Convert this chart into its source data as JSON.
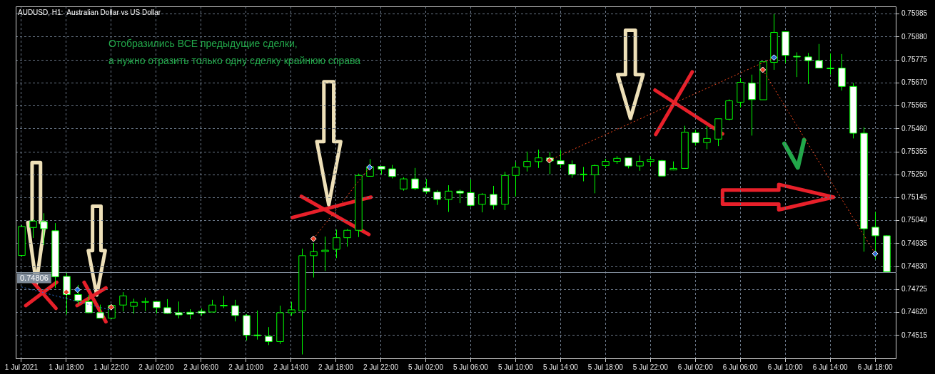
{
  "chart_data": {
    "type": "candlestick",
    "title": "AUDUSD, H1:  Australian Dollar vs US Dollar",
    "categories": [
      "1 Jul 2021",
      null,
      null,
      null,
      "1 Jul 18:00",
      null,
      null,
      null,
      "1 Jul 22:00",
      null,
      null,
      null,
      "2 Jul 02:00",
      null,
      null,
      null,
      "2 Jul 06:00",
      null,
      null,
      null,
      "2 Jul 10:00",
      null,
      null,
      null,
      "2 Jul 14:00",
      null,
      null,
      null,
      "2 Jul 18:00",
      null,
      null,
      null,
      "2 Jul 22:00",
      null,
      null,
      null,
      "5 Jul 02:00",
      null,
      null,
      null,
      "5 Jul 06:00",
      null,
      null,
      null,
      "5 Jul 10:00",
      null,
      null,
      null,
      "5 Jul 14:00",
      null,
      null,
      null,
      "5 Jul 18:00",
      null,
      null,
      null,
      "5 Jul 22:00",
      null,
      null,
      null,
      "6 Jul 02:00",
      null,
      null,
      null,
      "6 Jul 06:00",
      null,
      null,
      null,
      "6 Jul 10:00",
      null,
      null,
      null,
      "6 Jul 14:00",
      null,
      null,
      null,
      "6 Jul 18:00",
      null
    ],
    "ohlc": [
      [
        0.74881,
        0.7502,
        0.74875,
        0.75013
      ],
      [
        0.75009,
        0.75045,
        0.74961,
        0.75038
      ],
      [
        0.75035,
        0.75074,
        0.74929,
        0.75003
      ],
      [
        0.74994,
        0.75029,
        0.74732,
        0.74783
      ],
      [
        0.74785,
        0.74801,
        0.74611,
        0.74702
      ],
      [
        0.74702,
        0.74746,
        0.74656,
        0.74674
      ],
      [
        0.7467,
        0.747,
        0.74617,
        0.74619
      ],
      [
        0.74619,
        0.74656,
        0.74594,
        0.74594
      ],
      [
        0.74594,
        0.74656,
        0.7459,
        0.74653
      ],
      [
        0.74654,
        0.74713,
        0.74624,
        0.74696
      ],
      [
        0.74648,
        0.74683,
        0.74615,
        0.74667
      ],
      [
        0.74668,
        0.74688,
        0.74626,
        0.7467
      ],
      [
        0.7467,
        0.74672,
        0.74616,
        0.74642
      ],
      [
        0.74642,
        0.74681,
        0.74614,
        0.74616
      ],
      [
        0.74619,
        0.7467,
        0.74593,
        0.74609
      ],
      [
        0.74621,
        0.74635,
        0.74589,
        0.74612
      ],
      [
        0.74625,
        0.74638,
        0.74605,
        0.74617
      ],
      [
        0.74622,
        0.74678,
        0.74622,
        0.74654
      ],
      [
        0.74653,
        0.74696,
        0.7464,
        0.74652
      ],
      [
        0.74651,
        0.74678,
        0.74579,
        0.74606
      ],
      [
        0.74606,
        0.74613,
        0.74492,
        0.74516
      ],
      [
        0.74517,
        0.74629,
        0.74496,
        0.74516
      ],
      [
        0.74511,
        0.74553,
        0.74471,
        0.74487
      ],
      [
        0.74487,
        0.74651,
        0.74476,
        0.74619
      ],
      [
        0.74619,
        0.74669,
        0.74605,
        0.74632
      ],
      [
        0.74627,
        0.74912,
        0.74428,
        0.7488
      ],
      [
        0.7488,
        0.74938,
        0.7478,
        0.74898
      ],
      [
        0.74898,
        0.74967,
        0.7481,
        0.74905
      ],
      [
        0.74909,
        0.74999,
        0.74869,
        0.74962
      ],
      [
        0.74962,
        0.75002,
        0.74921,
        0.74996
      ],
      [
        0.74996,
        0.75255,
        0.74965,
        0.75247
      ],
      [
        0.75243,
        0.75322,
        0.75243,
        0.75287
      ],
      [
        0.75288,
        0.7529,
        0.75252,
        0.75276
      ],
      [
        0.75277,
        0.75295,
        0.75233,
        0.75242
      ],
      [
        0.75185,
        0.75238,
        0.75177,
        0.75231
      ],
      [
        0.75231,
        0.75281,
        0.7518,
        0.75187
      ],
      [
        0.75189,
        0.75231,
        0.75163,
        0.75173
      ],
      [
        0.75171,
        0.7518,
        0.75112,
        0.75137
      ],
      [
        0.75137,
        0.75202,
        0.7508,
        0.75175
      ],
      [
        0.75175,
        0.75182,
        0.7512,
        0.75166
      ],
      [
        0.75168,
        0.75228,
        0.75104,
        0.7511
      ],
      [
        0.75115,
        0.75166,
        0.75078,
        0.7516
      ],
      [
        0.7516,
        0.75199,
        0.75091,
        0.75111
      ],
      [
        0.75115,
        0.75264,
        0.75088,
        0.75247
      ],
      [
        0.75247,
        0.75308,
        0.7515,
        0.75285
      ],
      [
        0.75287,
        0.75356,
        0.75265,
        0.75311
      ],
      [
        0.7531,
        0.75365,
        0.75281,
        0.75327
      ],
      [
        0.75327,
        0.75354,
        0.75252,
        0.75313
      ],
      [
        0.75314,
        0.75363,
        0.75281,
        0.75298
      ],
      [
        0.75298,
        0.75315,
        0.75236,
        0.75252
      ],
      [
        0.75252,
        0.75286,
        0.7522,
        0.75253
      ],
      [
        0.7525,
        0.75297,
        0.75165,
        0.75292
      ],
      [
        0.75292,
        0.75323,
        0.75281,
        0.75311
      ],
      [
        0.75311,
        0.75335,
        0.753,
        0.75325
      ],
      [
        0.75327,
        0.75327,
        0.75279,
        0.7529
      ],
      [
        0.7529,
        0.75338,
        0.75268,
        0.75311
      ],
      [
        0.75311,
        0.75333,
        0.7529,
        0.7532
      ],
      [
        0.75314,
        0.75318,
        0.75244,
        0.75244
      ],
      [
        0.75272,
        0.75311,
        0.7527,
        0.75279
      ],
      [
        0.75279,
        0.75474,
        0.75279,
        0.75445
      ],
      [
        0.75442,
        0.75456,
        0.75383,
        0.75397
      ],
      [
        0.75397,
        0.75472,
        0.75367,
        0.75416
      ],
      [
        0.75413,
        0.75506,
        0.75381,
        0.75506
      ],
      [
        0.75504,
        0.75595,
        0.75499,
        0.75588
      ],
      [
        0.75582,
        0.75692,
        0.75558,
        0.75673
      ],
      [
        0.75669,
        0.75708,
        0.75429,
        0.75594
      ],
      [
        0.75593,
        0.75767,
        0.75593,
        0.75767
      ],
      [
        0.75764,
        0.75985,
        0.7573,
        0.75901
      ],
      [
        0.75904,
        0.75904,
        0.75762,
        0.75796
      ],
      [
        0.75792,
        0.7581,
        0.75697,
        0.75791
      ],
      [
        0.75789,
        0.75807,
        0.75665,
        0.75772
      ],
      [
        0.75772,
        0.75848,
        0.75738,
        0.75738
      ],
      [
        0.75738,
        0.75805,
        0.75708,
        0.75737
      ],
      [
        0.75738,
        0.75802,
        0.75635,
        0.75654
      ],
      [
        0.75654,
        0.7567,
        0.75416,
        0.7544
      ],
      [
        0.7544,
        0.75467,
        0.74898,
        0.75003
      ],
      [
        0.7501,
        0.7508,
        0.74863,
        0.74971
      ],
      [
        0.74971,
        0.74973,
        0.74805,
        0.74806
      ]
    ],
    "color": "#00ff00",
    "colors": [
      "#000000",
      "#000000",
      "#ffffff",
      "#ffffff",
      "#ffffff",
      "#ffffff",
      "#ffffff",
      "#ffffff",
      "#000000",
      "#000000",
      "#000000",
      "#000000",
      "#ffffff",
      "#ffffff",
      "#ffffff",
      "#ffffff",
      "#ffffff",
      "#000000",
      "#ffffff",
      "#ffffff",
      "#ffffff",
      "#ffffff",
      "#ffffff",
      "#000000",
      "#000000",
      "#000000",
      "#000000",
      "#000000",
      "#000000",
      "#000000",
      "#000000",
      "#000000",
      "#ffffff",
      "#ffffff",
      "#000000",
      "#ffffff",
      "#ffffff",
      "#ffffff",
      "#000000",
      "#ffffff",
      "#ffffff",
      "#000000",
      "#ffffff",
      "#000000",
      "#000000",
      "#000000",
      "#000000",
      "#ffffff",
      "#ffffff",
      "#ffffff",
      "#000000",
      "#000000",
      "#000000",
      "#000000",
      "#ffffff",
      "#000000",
      "#000000",
      "#ffffff",
      "#000000",
      "#000000",
      "#ffffff",
      "#000000",
      "#000000",
      "#000000",
      "#000000",
      "#ffffff",
      "#000000",
      "#000000",
      "#ffffff",
      "#ffffff",
      "#ffffff",
      "#ffffff",
      "#ffffff",
      "#ffffff",
      "#ffffff",
      "#ffffff",
      "#ffffff",
      "#ffffff"
    ],
    "ylim": [
      0.74407,
      0.7602
    ],
    "yticks": [
      0.75985,
      {
        "value": 0.7588,
        "label": "0.75880"
      },
      0.75775,
      {
        "value": 0.7567,
        "label": "0.75670"
      },
      0.75565,
      {
        "value": 0.7546,
        "label": "0.75460"
      },
      0.75355,
      {
        "value": 0.7525,
        "label": "0.75250"
      },
      0.75145,
      {
        "value": 0.7504,
        "label": "0.75040"
      },
      0.74935,
      {
        "value": 0.7483,
        "label": "0.74830"
      },
      0.74725,
      {
        "value": 0.7462,
        "label": "0.74620"
      },
      0.74515
    ],
    "grid": true,
    "ref_lines": [
      {
        "axis": "y",
        "value": 0.74806,
        "label": "0.74806",
        "color": "#7f8b99"
      }
    ],
    "annotations": [
      "Отобразились ВСЕ предыдущие сделки,",
      "а нужно отразить только одну сделку крайнюю справа"
    ],
    "series": [
      {
        "type": "line",
        "color": "#2f6fd6",
        "line_style": "dotted",
        "marker": "none",
        "values": [
          0.74737,
          null,
          null,
          null,
          null,
          null,
          null,
          null,
          0.7463,
          null,
          null,
          null,
          null,
          null,
          null,
          null,
          null,
          null,
          null,
          null,
          null,
          null,
          null,
          null,
          null,
          null,
          null,
          null,
          null,
          null,
          null,
          null,
          null,
          null,
          null,
          null,
          null,
          null,
          null,
          null,
          null,
          null,
          null,
          null,
          null,
          null,
          null,
          null,
          null,
          null,
          null,
          null,
          null,
          null,
          null,
          null,
          null,
          null,
          null,
          null,
          null,
          null,
          null,
          null,
          null,
          null,
          null,
          null,
          null,
          null,
          null,
          null,
          null,
          null,
          null,
          null,
          null,
          null
        ]
      },
      {
        "type": "line",
        "color": "#ff4a1c",
        "line_style": "dotted",
        "marker": "none",
        "values": [
          null,
          null,
          null,
          null,
          null,
          null,
          null,
          null,
          null,
          null,
          null,
          null,
          null,
          null,
          null,
          null,
          null,
          null,
          null,
          null,
          null,
          null,
          null,
          null,
          null,
          null,
          0.74957,
          null,
          null,
          null,
          null,
          0.75284,
          null,
          null,
          null,
          null,
          null,
          null,
          null,
          null,
          null,
          null,
          null,
          null,
          null,
          null,
          null,
          null,
          null,
          null,
          null,
          null,
          null,
          null,
          null,
          null,
          null,
          null,
          null,
          null,
          null,
          null,
          null,
          null,
          null,
          null,
          null,
          null,
          null,
          null,
          null,
          null,
          null,
          null,
          null,
          null,
          null,
          null
        ]
      },
      {
        "type": "line",
        "color": "#ff4a1c",
        "line_style": "dotted",
        "marker": "none",
        "values": [
          null,
          null,
          null,
          null,
          null,
          null,
          null,
          null,
          null,
          null,
          null,
          null,
          null,
          null,
          null,
          null,
          null,
          null,
          null,
          null,
          null,
          null,
          null,
          null,
          null,
          null,
          null,
          null,
          null,
          null,
          null,
          null,
          null,
          null,
          null,
          null,
          null,
          null,
          null,
          null,
          null,
          null,
          null,
          null,
          null,
          null,
          null,
          0.75316,
          null,
          null,
          null,
          null,
          null,
          null,
          null,
          null,
          null,
          null,
          null,
          null,
          null,
          null,
          null,
          null,
          null,
          null,
          null,
          0.75786,
          null,
          null,
          null,
          null,
          null,
          null,
          null,
          null,
          null,
          null
        ]
      },
      {
        "type": "line",
        "color": "#ff4a1c",
        "line_style": "dotted",
        "marker": "none",
        "values": [
          null,
          null,
          null,
          null,
          null,
          null,
          null,
          null,
          null,
          null,
          null,
          null,
          null,
          null,
          null,
          null,
          null,
          null,
          null,
          null,
          null,
          null,
          null,
          null,
          null,
          null,
          null,
          null,
          null,
          null,
          null,
          null,
          null,
          null,
          null,
          null,
          null,
          null,
          null,
          null,
          null,
          null,
          null,
          null,
          null,
          null,
          null,
          null,
          null,
          null,
          null,
          null,
          null,
          null,
          null,
          null,
          null,
          null,
          null,
          null,
          null,
          null,
          null,
          null,
          null,
          null,
          0.7573,
          null,
          null,
          null,
          null,
          null,
          null,
          null,
          null,
          null,
          0.74889,
          null
        ]
      },
      {
        "type": "scatter",
        "color": "#e8402a",
        "marker": "diamond",
        "values": [
          null,
          null,
          null,
          null,
          0.74713,
          null,
          null,
          null,
          0.74644,
          null,
          null,
          null,
          null,
          null,
          null,
          null,
          null,
          null,
          null,
          null,
          null,
          null,
          null,
          null,
          null,
          null,
          0.74957,
          null,
          null,
          null,
          null,
          null,
          null,
          null,
          null,
          null,
          null,
          null,
          null,
          null,
          null,
          null,
          null,
          null,
          null,
          null,
          null,
          0.75316,
          null,
          null,
          null,
          null,
          null,
          null,
          null,
          null,
          null,
          null,
          null,
          null,
          null,
          null,
          null,
          null,
          null,
          null,
          0.7573,
          null,
          null,
          null,
          null,
          null,
          null,
          null,
          null,
          null,
          null,
          null
        ]
      },
      {
        "type": "scatter",
        "color": "#1f6fe0",
        "marker": "diamond",
        "values": [
          null,
          null,
          null,
          null,
          null,
          0.74724,
          null,
          null,
          null,
          null,
          null,
          null,
          null,
          null,
          null,
          null,
          null,
          null,
          null,
          null,
          null,
          null,
          null,
          null,
          null,
          null,
          null,
          null,
          null,
          null,
          null,
          0.75284,
          null,
          null,
          null,
          null,
          null,
          null,
          null,
          null,
          null,
          null,
          null,
          null,
          null,
          null,
          null,
          null,
          null,
          null,
          null,
          null,
          null,
          null,
          null,
          null,
          null,
          null,
          null,
          null,
          null,
          null,
          null,
          null,
          null,
          null,
          null,
          0.75786,
          null,
          null,
          null,
          null,
          null,
          null,
          null,
          null,
          0.74889,
          null
        ]
      }
    ]
  }
}
